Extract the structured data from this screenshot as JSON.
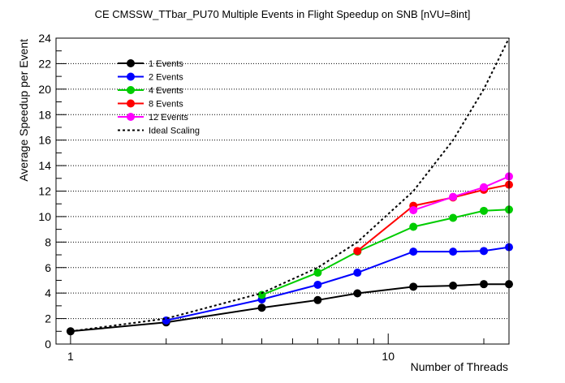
{
  "chart_data": {
    "type": "line",
    "title": "CE CMSSW_TTbar_PU70 Multiple Events in Flight Speedup on SNB [nVU=8int]",
    "xlabel": "Number of Threads",
    "ylabel": "Average Speedup per Event",
    "xscale": "log",
    "xlim": [
      0.9,
      24
    ],
    "ylim": [
      0,
      24
    ],
    "x_tick_labels": [
      {
        "value": 1,
        "label": "1"
      },
      {
        "value": 10,
        "label": "10"
      }
    ],
    "y_ticks": [
      0,
      2,
      4,
      6,
      8,
      10,
      12,
      14,
      16,
      18,
      20,
      22,
      24
    ],
    "grid": "horizontal dotted",
    "legend_position": "top-left",
    "series": [
      {
        "name": "1 Events",
        "color": "#000000",
        "marker": "circle",
        "x": [
          1,
          2,
          4,
          6,
          8,
          12,
          16,
          20,
          24
        ],
        "y": [
          1.0,
          1.7,
          2.85,
          3.45,
          3.98,
          4.5,
          4.58,
          4.7,
          4.7
        ]
      },
      {
        "name": "2 Events",
        "color": "#0000ff",
        "marker": "circle",
        "x": [
          2,
          4,
          6,
          8,
          12,
          16,
          20,
          24
        ],
        "y": [
          1.85,
          3.5,
          4.65,
          5.6,
          7.25,
          7.25,
          7.3,
          7.6
        ]
      },
      {
        "name": "4 Events",
        "color": "#00cc00",
        "marker": "circle",
        "x": [
          4,
          6,
          8,
          12,
          16,
          20,
          24
        ],
        "y": [
          3.85,
          5.6,
          7.25,
          9.2,
          9.9,
          10.45,
          10.55
        ]
      },
      {
        "name": "8 Events",
        "color": "#ff0000",
        "marker": "circle",
        "x": [
          8,
          12,
          16,
          20,
          24
        ],
        "y": [
          7.3,
          10.85,
          11.5,
          12.1,
          12.5
        ]
      },
      {
        "name": "12 Events",
        "color": "#ff00ff",
        "marker": "circle",
        "x": [
          12,
          16,
          20,
          24
        ],
        "y": [
          10.5,
          11.55,
          12.3,
          13.15
        ]
      },
      {
        "name": "Ideal Scaling",
        "color": "#000000",
        "style": "dashed",
        "x": [
          1,
          2,
          4,
          6,
          8,
          12,
          16,
          20,
          24
        ],
        "y": [
          1,
          2,
          4,
          6,
          8,
          12,
          16,
          20,
          24
        ]
      }
    ]
  }
}
